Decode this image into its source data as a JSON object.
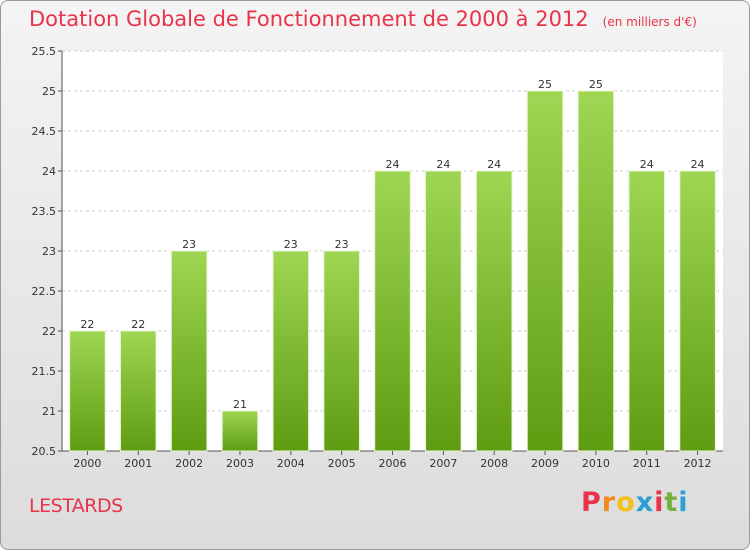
{
  "chart_data": {
    "type": "bar",
    "title": "Dotation Globale de Fonctionnement de 2000 à 2012",
    "unit_note": "(en milliers d'€)",
    "categories": [
      "2000",
      "2001",
      "2002",
      "2003",
      "2004",
      "2005",
      "2006",
      "2007",
      "2008",
      "2009",
      "2010",
      "2011",
      "2012"
    ],
    "values": [
      22,
      22,
      23,
      21,
      23,
      23,
      24,
      24,
      24,
      25,
      25,
      24,
      24
    ],
    "data_labels": [
      "22",
      "22",
      "23",
      "21",
      "23",
      "23",
      "24",
      "24",
      "24",
      "25",
      "25",
      "24",
      "24"
    ],
    "ylim": [
      20.5,
      25.5
    ],
    "yticks": [
      20.5,
      21,
      21.5,
      22,
      22.5,
      23,
      23.5,
      24,
      24.5,
      25,
      25.5
    ],
    "ytick_labels": [
      "20.5",
      "21",
      "21.5",
      "22",
      "22.5",
      "23",
      "23.5",
      "24",
      "24.5",
      "25",
      "25.5"
    ],
    "grid": true,
    "bar_color_top": "#9fd653",
    "bar_color_bottom": "#5e9c12"
  },
  "footer": {
    "commune": "LESTARDS",
    "brand": "Proxiti"
  },
  "colors": {
    "title": "#e8334a",
    "brand_letters": [
      "#e8334a",
      "#f08a1c",
      "#f2c21b",
      "#2a9fd6",
      "#e8334a",
      "#74b13a",
      "#2a9fd6"
    ]
  }
}
